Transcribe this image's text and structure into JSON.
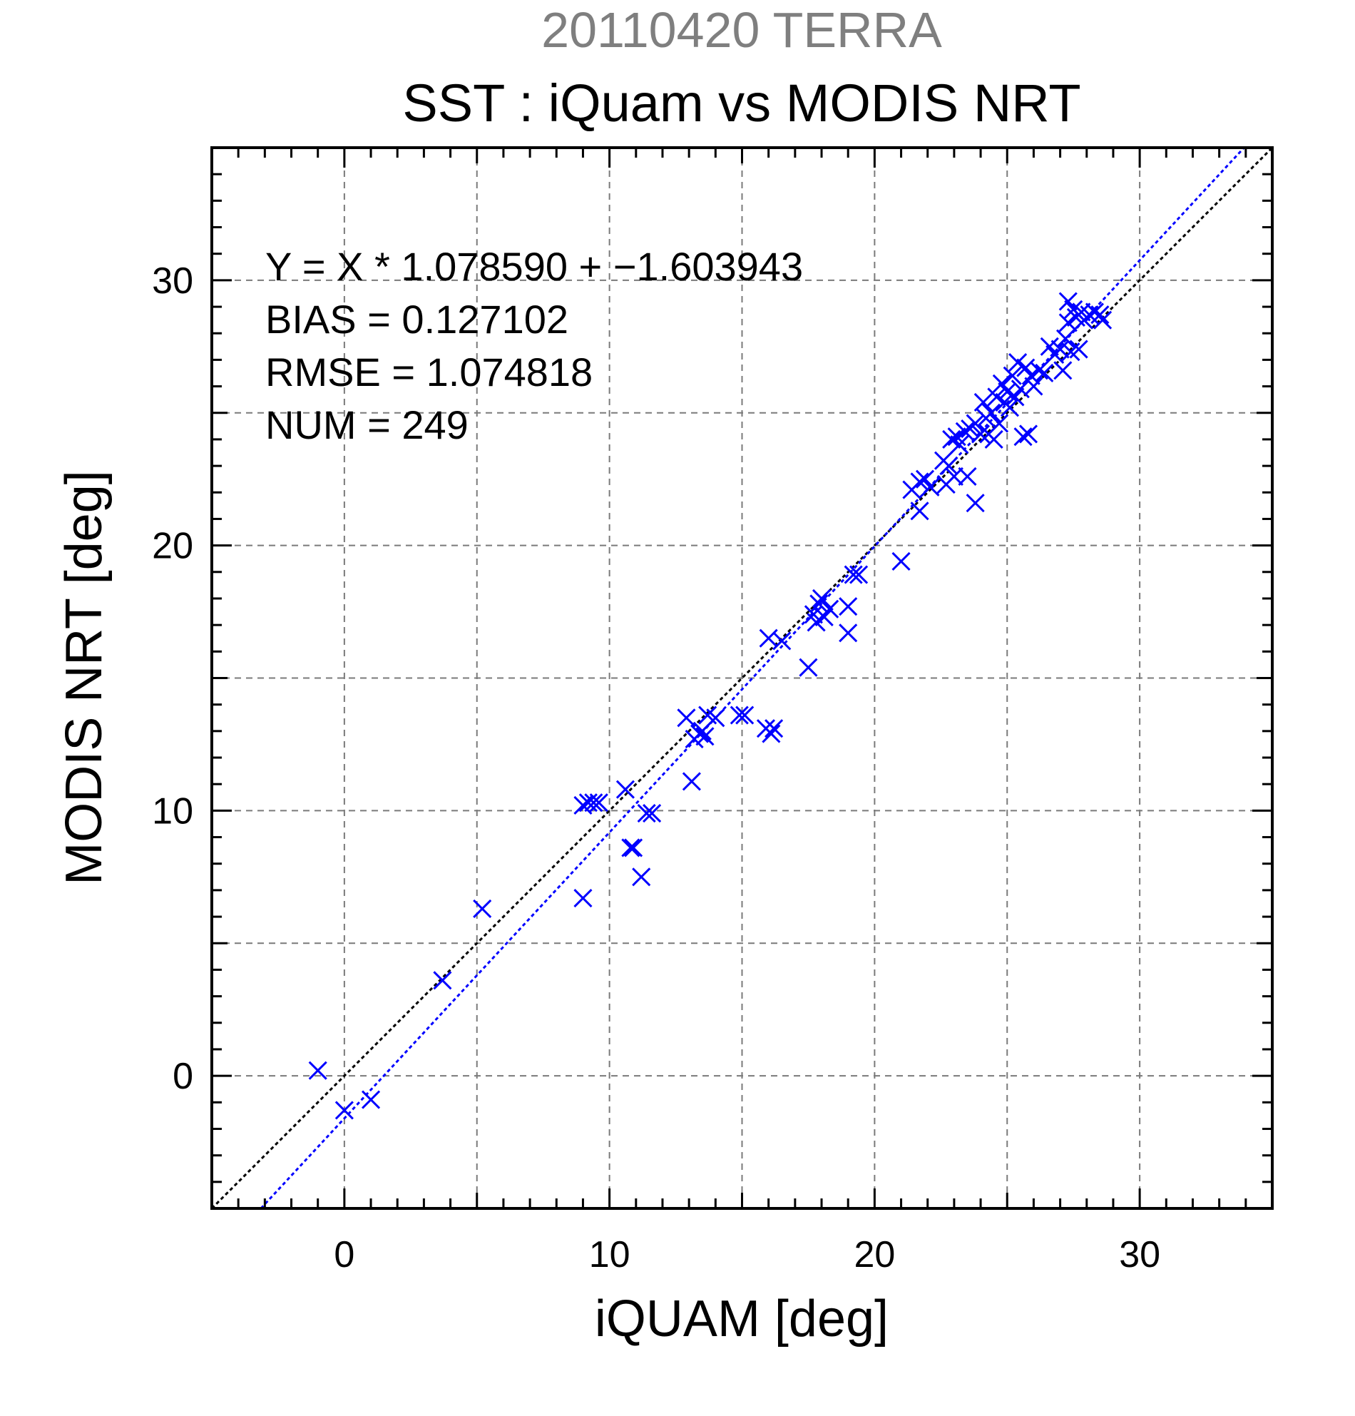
{
  "chart_data": {
    "type": "scatter",
    "subtitle": "20110420 TERRA",
    "title": "SST : iQuam vs MODIS NRT",
    "xlabel": "iQUAM [deg]",
    "ylabel": "MODIS NRT [deg]",
    "xlim": [
      -5,
      35
    ],
    "ylim": [
      -5,
      35
    ],
    "major_ticks": [
      0,
      10,
      20,
      30
    ],
    "grid": true,
    "grid_step": 5,
    "marker": "x",
    "marker_color": "#0000ff",
    "stats": {
      "equation": "Y = X * 1.078590 + −1.603943",
      "bias": "BIAS = 0.127102",
      "rmse": "RMSE = 1.074818",
      "num": "NUM = 249"
    },
    "lines": [
      {
        "kind": "identity",
        "slope": 1.0,
        "intercept": 0.0,
        "color": "#000000"
      },
      {
        "kind": "regression",
        "slope": 1.07859,
        "intercept": -1.603943,
        "color": "#0000ff"
      }
    ],
    "points": [
      [
        -1.0,
        0.2
      ],
      [
        0.0,
        -1.3
      ],
      [
        1.0,
        -0.9
      ],
      [
        3.7,
        3.6
      ],
      [
        5.2,
        6.3
      ],
      [
        9.0,
        6.7
      ],
      [
        9.0,
        10.2
      ],
      [
        9.2,
        10.3
      ],
      [
        9.4,
        10.3
      ],
      [
        9.6,
        10.3
      ],
      [
        10.6,
        10.8
      ],
      [
        10.8,
        8.6
      ],
      [
        10.9,
        8.6
      ],
      [
        11.2,
        7.5
      ],
      [
        11.4,
        9.9
      ],
      [
        11.6,
        9.9
      ],
      [
        12.9,
        13.5
      ],
      [
        13.1,
        11.1
      ],
      [
        13.2,
        12.7
      ],
      [
        13.4,
        12.9
      ],
      [
        13.5,
        13.0
      ],
      [
        13.6,
        12.8
      ],
      [
        13.7,
        13.6
      ],
      [
        14.0,
        13.5
      ],
      [
        14.9,
        13.6
      ],
      [
        15.1,
        13.6
      ],
      [
        15.9,
        13.1
      ],
      [
        16.0,
        16.5
      ],
      [
        16.1,
        12.9
      ],
      [
        16.2,
        13.1
      ],
      [
        16.5,
        16.4
      ],
      [
        17.5,
        15.4
      ],
      [
        17.7,
        17.4
      ],
      [
        17.8,
        17.1
      ],
      [
        17.9,
        17.8
      ],
      [
        18.0,
        18.0
      ],
      [
        18.1,
        17.3
      ],
      [
        18.3,
        17.6
      ],
      [
        19.0,
        16.7
      ],
      [
        19.0,
        17.7
      ],
      [
        19.2,
        18.9
      ],
      [
        19.4,
        18.9
      ],
      [
        21.0,
        19.4
      ],
      [
        21.4,
        22.1
      ],
      [
        21.7,
        21.3
      ],
      [
        21.7,
        22.4
      ],
      [
        21.9,
        22.5
      ],
      [
        22.1,
        22.2
      ],
      [
        22.6,
        23.2
      ],
      [
        22.7,
        22.3
      ],
      [
        22.8,
        23.0
      ],
      [
        22.9,
        24.0
      ],
      [
        23.0,
        22.6
      ],
      [
        23.1,
        24.1
      ],
      [
        23.2,
        23.8
      ],
      [
        23.4,
        24.3
      ],
      [
        23.5,
        22.6
      ],
      [
        23.6,
        24.4
      ],
      [
        23.8,
        21.6
      ],
      [
        23.8,
        24.6
      ],
      [
        24.0,
        24.2
      ],
      [
        24.1,
        25.4
      ],
      [
        24.2,
        24.8
      ],
      [
        24.3,
        24.2
      ],
      [
        24.4,
        25.0
      ],
      [
        24.5,
        24.0
      ],
      [
        24.6,
        25.6
      ],
      [
        24.7,
        24.6
      ],
      [
        24.8,
        26.1
      ],
      [
        24.9,
        25.4
      ],
      [
        25.0,
        25.8
      ],
      [
        25.1,
        25.2
      ],
      [
        25.2,
        26.4
      ],
      [
        25.3,
        25.6
      ],
      [
        25.4,
        26.9
      ],
      [
        25.5,
        25.9
      ],
      [
        25.6,
        24.1
      ],
      [
        25.7,
        26.7
      ],
      [
        25.8,
        24.2
      ],
      [
        25.9,
        26.4
      ],
      [
        26.0,
        26.0
      ],
      [
        26.2,
        26.6
      ],
      [
        26.4,
        26.5
      ],
      [
        26.6,
        27.5
      ],
      [
        26.8,
        27.2
      ],
      [
        27.0,
        27.4
      ],
      [
        27.1,
        26.6
      ],
      [
        27.2,
        27.8
      ],
      [
        27.3,
        28.4
      ],
      [
        27.3,
        29.2
      ],
      [
        27.4,
        27.3
      ],
      [
        27.5,
        28.9
      ],
      [
        27.6,
        28.6
      ],
      [
        27.7,
        27.4
      ],
      [
        27.8,
        28.8
      ],
      [
        27.9,
        28.5
      ],
      [
        28.1,
        28.7
      ],
      [
        28.3,
        28.8
      ],
      [
        28.5,
        28.7
      ],
      [
        28.6,
        28.5
      ]
    ]
  }
}
